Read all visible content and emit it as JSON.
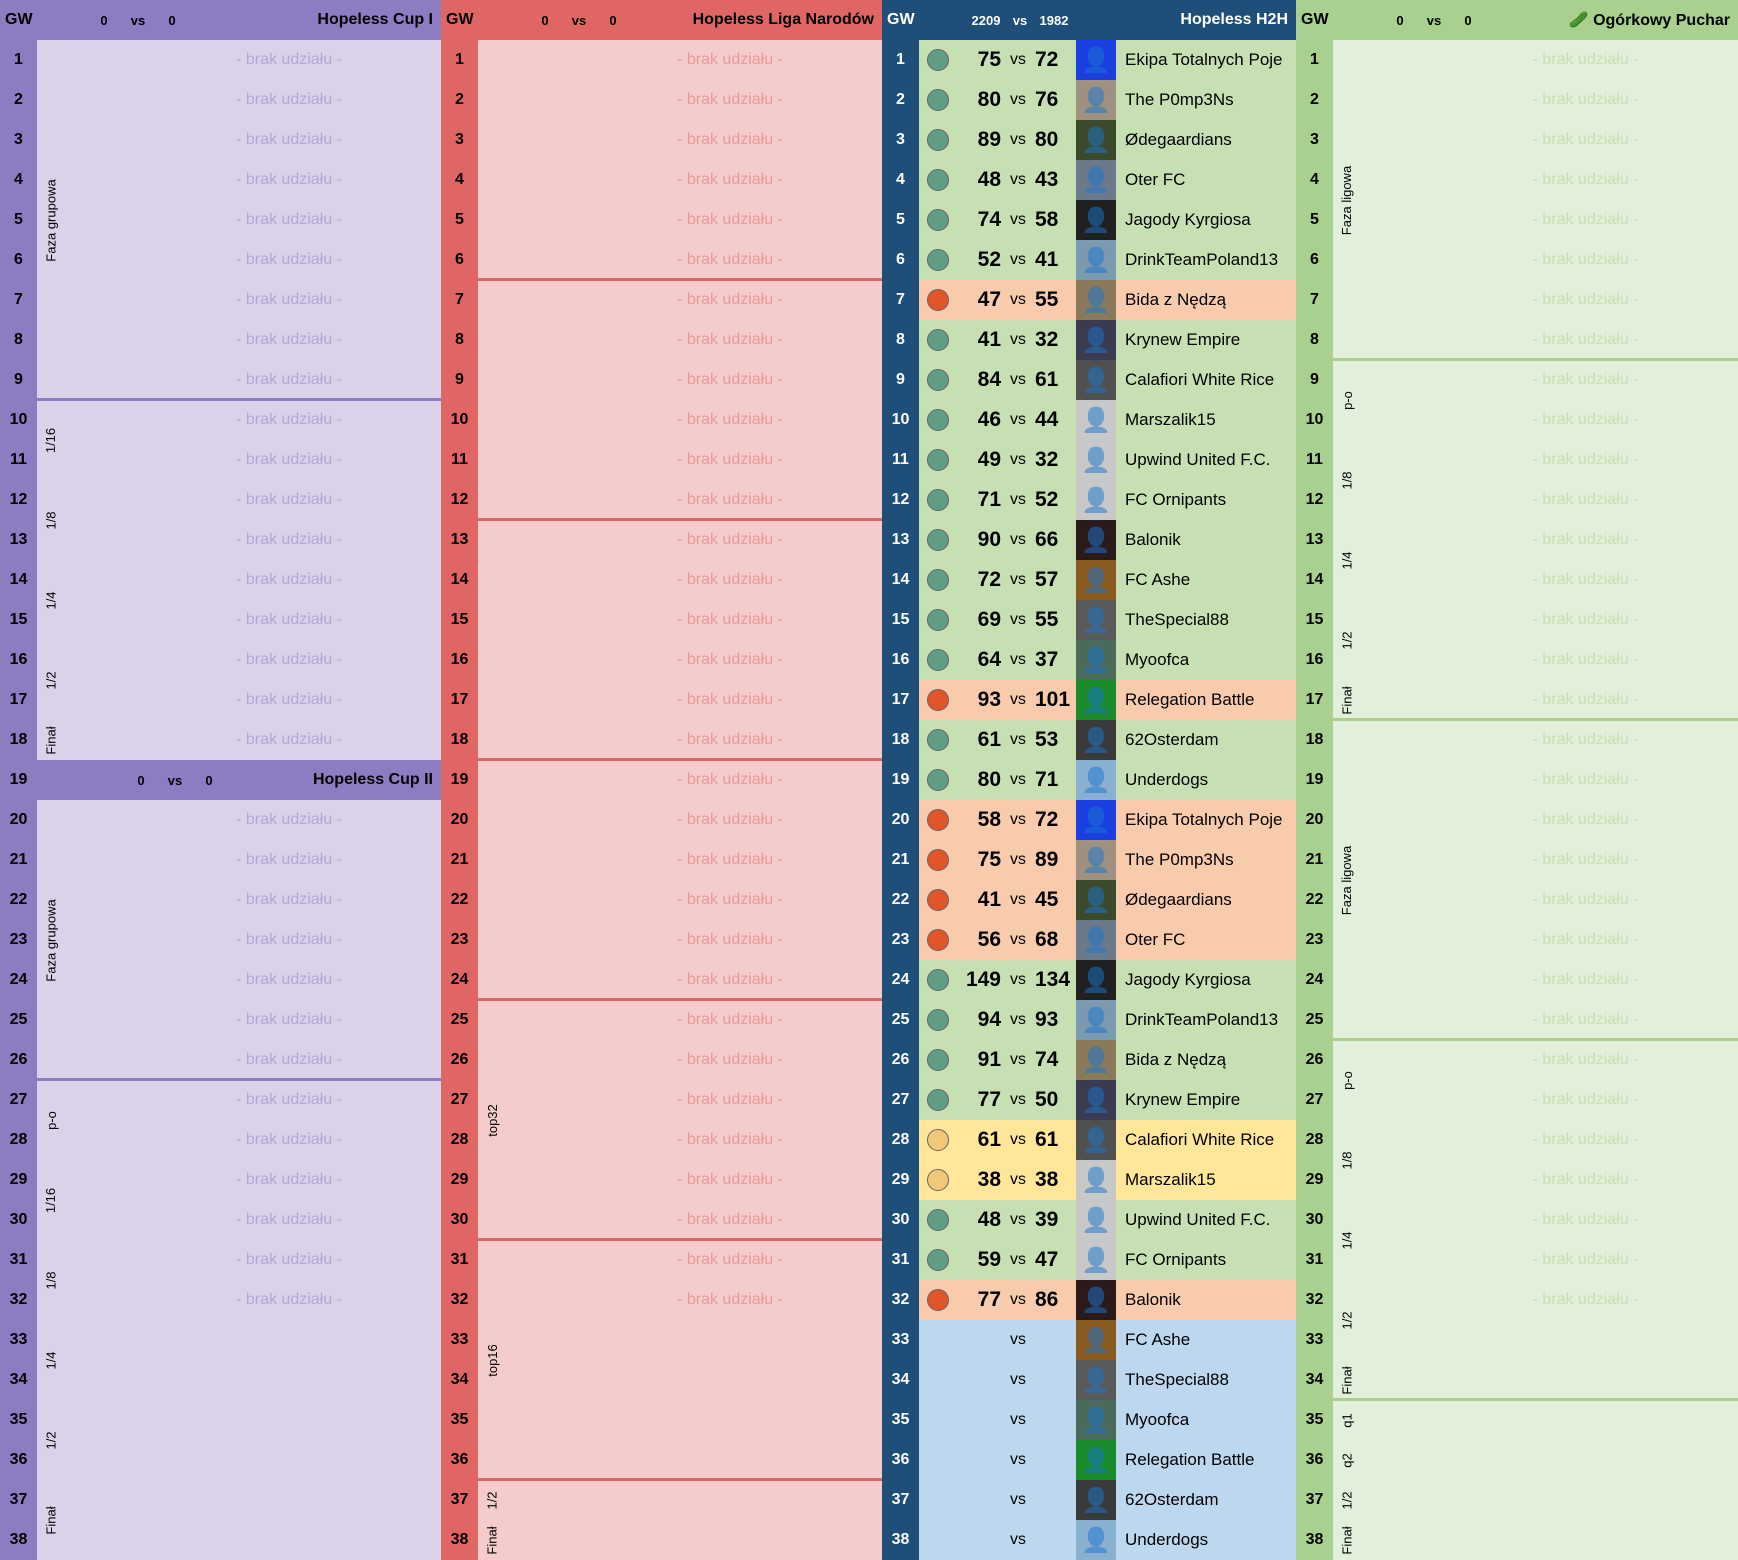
{
  "no_participation": "- brak udziału -",
  "gw_label": "GW",
  "vs": "vs",
  "colors": {
    "cup_header": "#8e7cc3",
    "cup_bg": "#d9d2e9",
    "cup_text": "#b4a7d6",
    "liga_header": "#e06666",
    "liga_bg": "#f4cccc",
    "liga_text": "#ea9999",
    "h2h_header": "#1f4e79",
    "win": "#c6e0b4",
    "loss": "#f8cbad",
    "draw": "#ffe699",
    "upcoming": "#bdd7ee",
    "pickle_header": "#a9d08e",
    "pickle_bg": "#e2efda",
    "pickle_text": "#c6e0b4"
  },
  "cup": {
    "title_1": "Hopeless Cup I",
    "score_1": [
      "0",
      "0"
    ],
    "title_2": "Hopeless Cup II",
    "score_2": [
      "0",
      "0"
    ],
    "header2_gw": 19,
    "stages": [
      {
        "label": "Faza grupowa",
        "gws": [
          1,
          9
        ]
      },
      {
        "label": "1/16",
        "gws": [
          10,
          11
        ]
      },
      {
        "label": "1/8",
        "gws": [
          12,
          13
        ]
      },
      {
        "label": "1/4",
        "gws": [
          14,
          15
        ]
      },
      {
        "label": "1/2",
        "gws": [
          16,
          17
        ]
      },
      {
        "label": "Finał",
        "gws": [
          18,
          18
        ]
      },
      {
        "label": "Faza grupowa",
        "gws": [
          20,
          26
        ]
      },
      {
        "label": "p-o",
        "gws": [
          27,
          28
        ]
      },
      {
        "label": "1/16",
        "gws": [
          29,
          30
        ]
      },
      {
        "label": "1/8",
        "gws": [
          31,
          32
        ]
      },
      {
        "label": "1/4",
        "gws": [
          33,
          34
        ]
      },
      {
        "label": "1/2",
        "gws": [
          35,
          36
        ]
      },
      {
        "label": "Finał",
        "gws": [
          37,
          38
        ]
      }
    ],
    "separators_after": [
      9,
      26
    ],
    "no_participation_gws": [
      1,
      2,
      3,
      4,
      5,
      6,
      7,
      8,
      9,
      10,
      11,
      12,
      13,
      14,
      15,
      16,
      17,
      18,
      20,
      21,
      22,
      23,
      24,
      25,
      26,
      27,
      28,
      29,
      30,
      31,
      32
    ]
  },
  "liga": {
    "title": "Hopeless Liga Narodów",
    "score": [
      "0",
      "0"
    ],
    "stages": [
      {
        "label": "top32",
        "gws": [
          25,
          30
        ]
      },
      {
        "label": "top16",
        "gws": [
          31,
          36
        ]
      },
      {
        "label": "1/2",
        "gws": [
          37,
          37
        ]
      },
      {
        "label": "Finał",
        "gws": [
          38,
          38
        ]
      }
    ],
    "separators_after": [
      6,
      12,
      18,
      24,
      30,
      36
    ],
    "no_participation_gws": [
      1,
      2,
      3,
      4,
      5,
      6,
      7,
      8,
      9,
      10,
      11,
      12,
      13,
      14,
      15,
      16,
      17,
      18,
      19,
      20,
      21,
      22,
      23,
      24,
      25,
      26,
      27,
      28,
      29,
      30,
      31,
      32
    ]
  },
  "h2h": {
    "title": "Hopeless H2H",
    "score": [
      "2209",
      "1982"
    ],
    "rows": [
      {
        "gw": 1,
        "r": "win",
        "a": "75",
        "b": "72",
        "opp": "Ekipa Totalnych Poje",
        "av": "#1a3fe0"
      },
      {
        "gw": 2,
        "r": "win",
        "a": "80",
        "b": "76",
        "opp": "The P0mp3Ns",
        "av": "#a09080"
      },
      {
        "gw": 3,
        "r": "win",
        "a": "89",
        "b": "80",
        "opp": "Ødegaardians",
        "av": "#3a4a2a"
      },
      {
        "gw": 4,
        "r": "win",
        "a": "48",
        "b": "43",
        "opp": "Oter FC",
        "av": "#6a7a8a"
      },
      {
        "gw": 5,
        "r": "win",
        "a": "74",
        "b": "58",
        "opp": "Jagody Kyrgiosa",
        "av": "#202020"
      },
      {
        "gw": 6,
        "r": "win",
        "a": "52",
        "b": "41",
        "opp": "DrinkTeamPoland13",
        "av": "#7a9ab0"
      },
      {
        "gw": 7,
        "r": "loss",
        "a": "47",
        "b": "55",
        "opp": "Bida z Nędzą",
        "av": "#8a7a5a"
      },
      {
        "gw": 8,
        "r": "win",
        "a": "41",
        "b": "32",
        "opp": "Krynew Empire",
        "av": "#3a3a50"
      },
      {
        "gw": 9,
        "r": "win",
        "a": "84",
        "b": "61",
        "opp": "Calafiori White Rice",
        "av": "#505050"
      },
      {
        "gw": 10,
        "r": "win",
        "a": "46",
        "b": "44",
        "opp": "Marszalik15",
        "av": "#c8c8c8"
      },
      {
        "gw": 11,
        "r": "win",
        "a": "49",
        "b": "32",
        "opp": "Upwind United F.C.",
        "av": "#c8c8c8"
      },
      {
        "gw": 12,
        "r": "win",
        "a": "71",
        "b": "52",
        "opp": "FC Ornipants",
        "av": "#c8c8c8"
      },
      {
        "gw": 13,
        "r": "win",
        "a": "90",
        "b": "66",
        "opp": "Balonik",
        "av": "#2a1a1a"
      },
      {
        "gw": 14,
        "r": "win",
        "a": "72",
        "b": "57",
        "opp": "FC Ashe",
        "av": "#8a5a20"
      },
      {
        "gw": 15,
        "r": "win",
        "a": "69",
        "b": "55",
        "opp": "TheSpecial88",
        "av": "#5a5a5a"
      },
      {
        "gw": 16,
        "r": "win",
        "a": "64",
        "b": "37",
        "opp": "Myoofca",
        "av": "#4a6a5a"
      },
      {
        "gw": 17,
        "r": "loss",
        "a": "93",
        "b": "101",
        "opp": "Relegation Battle",
        "av": "#1a8a2a"
      },
      {
        "gw": 18,
        "r": "win",
        "a": "61",
        "b": "53",
        "opp": "62Osterdam",
        "av": "#3a3a3a"
      },
      {
        "gw": 19,
        "r": "win",
        "a": "80",
        "b": "71",
        "opp": "Underdogs",
        "av": "#8ab0d0"
      },
      {
        "gw": 20,
        "r": "loss",
        "a": "58",
        "b": "72",
        "opp": "Ekipa Totalnych Poje",
        "av": "#1a3fe0"
      },
      {
        "gw": 21,
        "r": "loss",
        "a": "75",
        "b": "89",
        "opp": "The P0mp3Ns",
        "av": "#a09080"
      },
      {
        "gw": 22,
        "r": "loss",
        "a": "41",
        "b": "45",
        "opp": "Ødegaardians",
        "av": "#3a4a2a"
      },
      {
        "gw": 23,
        "r": "loss",
        "a": "56",
        "b": "68",
        "opp": "Oter FC",
        "av": "#6a7a8a"
      },
      {
        "gw": 24,
        "r": "win",
        "a": "149",
        "b": "134",
        "opp": "Jagody Kyrgiosa",
        "av": "#202020"
      },
      {
        "gw": 25,
        "r": "win",
        "a": "94",
        "b": "93",
        "opp": "DrinkTeamPoland13",
        "av": "#7a9ab0"
      },
      {
        "gw": 26,
        "r": "win",
        "a": "91",
        "b": "74",
        "opp": "Bida z Nędzą",
        "av": "#8a7a5a"
      },
      {
        "gw": 27,
        "r": "win",
        "a": "77",
        "b": "50",
        "opp": "Krynew Empire",
        "av": "#3a3a50"
      },
      {
        "gw": 28,
        "r": "draw",
        "a": "61",
        "b": "61",
        "opp": "Calafiori White Rice",
        "av": "#505050"
      },
      {
        "gw": 29,
        "r": "draw",
        "a": "38",
        "b": "38",
        "opp": "Marszalik15",
        "av": "#c8c8c8"
      },
      {
        "gw": 30,
        "r": "win",
        "a": "48",
        "b": "39",
        "opp": "Upwind United F.C.",
        "av": "#c8c8c8"
      },
      {
        "gw": 31,
        "r": "win",
        "a": "59",
        "b": "47",
        "opp": "FC Ornipants",
        "av": "#c8c8c8"
      },
      {
        "gw": 32,
        "r": "loss",
        "a": "77",
        "b": "86",
        "opp": "Balonik",
        "av": "#2a1a1a"
      },
      {
        "gw": 33,
        "r": "upcoming",
        "a": "",
        "b": "",
        "opp": "FC Ashe",
        "av": "#8a5a20"
      },
      {
        "gw": 34,
        "r": "upcoming",
        "a": "",
        "b": "",
        "opp": "TheSpecial88",
        "av": "#5a5a5a"
      },
      {
        "gw": 35,
        "r": "upcoming",
        "a": "",
        "b": "",
        "opp": "Myoofca",
        "av": "#4a6a5a"
      },
      {
        "gw": 36,
        "r": "upcoming",
        "a": "",
        "b": "",
        "opp": "Relegation Battle",
        "av": "#1a8a2a"
      },
      {
        "gw": 37,
        "r": "upcoming",
        "a": "",
        "b": "",
        "opp": "62Osterdam",
        "av": "#3a3a3a"
      },
      {
        "gw": 38,
        "r": "upcoming",
        "a": "",
        "b": "",
        "opp": "Underdogs",
        "av": "#8ab0d0"
      }
    ],
    "circle_colors": {
      "win": "#5f9e84",
      "loss": "#e0552a",
      "draw": "#f0c878"
    }
  },
  "pickle": {
    "title": "Ogórkowy Puchar",
    "score": [
      "0",
      "0"
    ],
    "stages": [
      {
        "label": "Faza ligowa",
        "gws": [
          1,
          8
        ]
      },
      {
        "label": "p-o",
        "gws": [
          9,
          10
        ]
      },
      {
        "label": "1/8",
        "gws": [
          11,
          12
        ]
      },
      {
        "label": "1/4",
        "gws": [
          13,
          14
        ]
      },
      {
        "label": "1/2",
        "gws": [
          15,
          16
        ]
      },
      {
        "label": "Finał",
        "gws": [
          17,
          17
        ]
      },
      {
        "label": "Faza ligowa",
        "gws": [
          18,
          25
        ]
      },
      {
        "label": "p-o",
        "gws": [
          26,
          27
        ]
      },
      {
        "label": "1/8",
        "gws": [
          28,
          29
        ]
      },
      {
        "label": "1/4",
        "gws": [
          30,
          31
        ]
      },
      {
        "label": "1/2",
        "gws": [
          32,
          33
        ]
      },
      {
        "label": "Finał",
        "gws": [
          34,
          34
        ]
      },
      {
        "label": "q1",
        "gws": [
          35,
          35
        ]
      },
      {
        "label": "q2",
        "gws": [
          36,
          36
        ]
      },
      {
        "label": "1/2",
        "gws": [
          37,
          37
        ]
      },
      {
        "label": "Finał",
        "gws": [
          38,
          38
        ]
      }
    ],
    "separators_after": [
      8,
      17,
      25,
      34
    ],
    "no_participation_gws": [
      1,
      2,
      3,
      4,
      5,
      6,
      7,
      8,
      9,
      10,
      11,
      12,
      13,
      14,
      15,
      16,
      17,
      18,
      19,
      20,
      21,
      22,
      23,
      24,
      25,
      26,
      27,
      28,
      29,
      30,
      31,
      32
    ]
  }
}
